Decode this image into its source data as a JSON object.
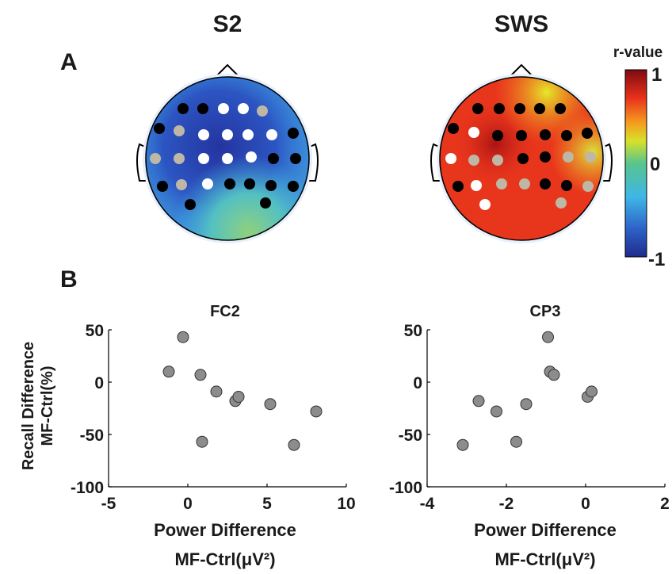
{
  "headers": {
    "left": "S2",
    "right": "SWS"
  },
  "panel_labels": {
    "a": "A",
    "b": "B"
  },
  "colorbar": {
    "title": "r-value",
    "ticks": [
      "1",
      "0",
      "-1"
    ]
  },
  "dot_colors": {
    "black": "#000000",
    "white": "#ffffff",
    "gray": "#bfb7a5"
  },
  "topomaps": [
    {
      "name": "S2",
      "electrodes": [
        [
          "black",
          "black",
          "white",
          "white",
          "gray"
        ],
        [
          "black",
          "gray",
          "white",
          "white",
          "white",
          "white",
          "black"
        ],
        [
          "gray",
          "gray",
          "white",
          "white",
          "white",
          "black",
          "black"
        ],
        [
          "black",
          "gray",
          "white",
          "black",
          "black",
          "black",
          "black"
        ],
        [
          "black",
          "black"
        ]
      ]
    },
    {
      "name": "SWS",
      "electrodes": [
        [
          "black",
          "black",
          "black",
          "black",
          "black"
        ],
        [
          "black",
          "white",
          "black",
          "black",
          "black",
          "black",
          "black"
        ],
        [
          "white",
          "gray",
          "gray",
          "black",
          "black",
          "gray",
          "gray"
        ],
        [
          "black",
          "white",
          "gray",
          "gray",
          "black",
          "black",
          "gray"
        ],
        [
          "white",
          "gray"
        ]
      ]
    }
  ],
  "chart_data": [
    {
      "type": "scatter",
      "title": "FC2",
      "xlabel": "Power Difference",
      "xlabel_line2": "MF-Ctrl(μV²)",
      "ylabel": "Recall Difference",
      "ylabel_line2": "MF-Ctrl(%)",
      "xlim": [
        -5,
        10
      ],
      "ylim": [
        -100,
        50
      ],
      "xticks": [
        "-5",
        "0",
        "5",
        "10"
      ],
      "yticks": [
        "50",
        "0",
        "-50",
        "-100"
      ],
      "x": [
        -0.3,
        -1.2,
        0.8,
        1.8,
        3.0,
        3.2,
        5.2,
        8.1,
        0.9,
        6.7
      ],
      "y": [
        43,
        10,
        7,
        -9,
        -18,
        -14,
        -21,
        -28,
        -57,
        -60
      ]
    },
    {
      "type": "scatter",
      "title": "CP3",
      "xlabel": "Power Difference",
      "xlabel_line2": "MF-Ctrl(μV²)",
      "xlim": [
        -4,
        2
      ],
      "ylim": [
        -100,
        50
      ],
      "xticks": [
        "-4",
        "-2",
        "0",
        "2"
      ],
      "yticks": [
        "50",
        "0",
        "-50",
        "-100"
      ],
      "x": [
        -0.95,
        -0.9,
        -0.8,
        -2.7,
        -2.25,
        -1.5,
        0.05,
        0.15,
        -1.75,
        -3.1
      ],
      "y": [
        43,
        10,
        7,
        -18,
        -28,
        -21,
        -14,
        -9,
        -57,
        -60
      ]
    }
  ]
}
